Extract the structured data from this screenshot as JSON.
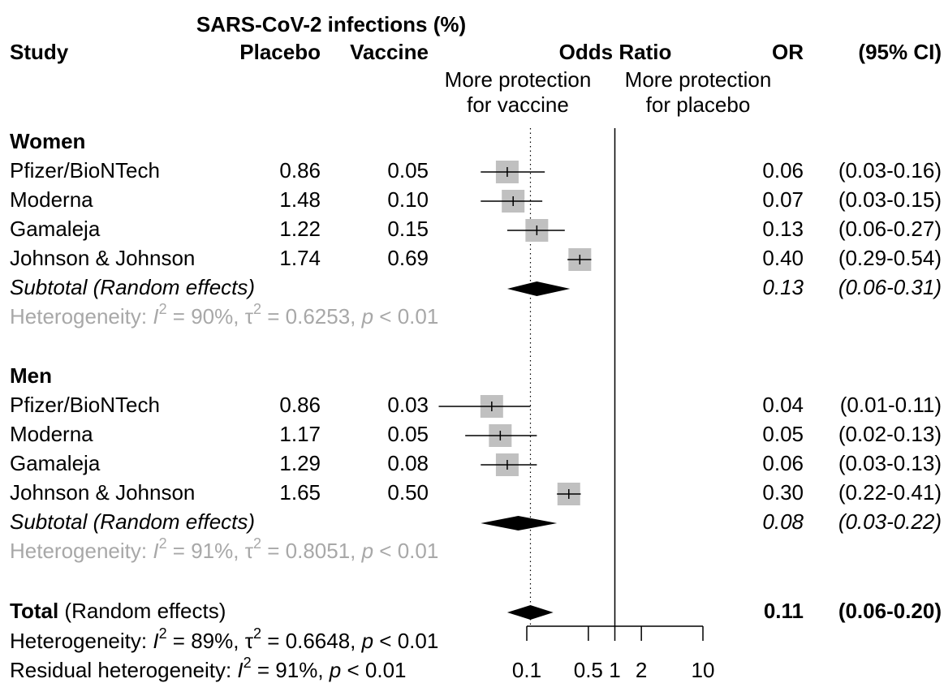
{
  "chart_data": {
    "type": "forest",
    "header": {
      "group": "SARS-CoV-2 infections (%)",
      "study": "Study",
      "placebo": "Placebo",
      "vaccine": "Vaccine",
      "plot": "Odds Ratio",
      "or": "OR",
      "ci": "(95% CI)",
      "left_note": [
        "More protection",
        "for vaccine"
      ],
      "right_note": [
        "More protection",
        "for placebo"
      ]
    },
    "xscale": "log",
    "xlim": [
      0.1,
      10
    ],
    "xticks": [
      0.1,
      0.5,
      1,
      2,
      10
    ],
    "reference": 1,
    "groups": [
      {
        "name": "Women",
        "studies": [
          {
            "name": "Pfizer/BioNTech",
            "placebo": "0.86",
            "vaccine": "0.05",
            "or": 0.06,
            "or_label": "0.06",
            "lower": 0.03,
            "upper": 0.16,
            "ci_label": "(0.03-0.16)"
          },
          {
            "name": "Moderna",
            "placebo": "1.48",
            "vaccine": "0.10",
            "or": 0.07,
            "or_label": "0.07",
            "lower": 0.03,
            "upper": 0.15,
            "ci_label": "(0.03-0.15)"
          },
          {
            "name": "Gamaleja",
            "placebo": "1.22",
            "vaccine": "0.15",
            "or": 0.13,
            "or_label": "0.13",
            "lower": 0.06,
            "upper": 0.27,
            "ci_label": "(0.06-0.27)"
          },
          {
            "name": "Johnson & Johnson",
            "placebo": "1.74",
            "vaccine": "0.69",
            "or": 0.4,
            "or_label": "0.40",
            "lower": 0.29,
            "upper": 0.54,
            "ci_label": "(0.29-0.54)"
          }
        ],
        "subtotal": {
          "name": "Subtotal (Random effects)",
          "or": 0.13,
          "or_label": "0.13",
          "lower": 0.06,
          "upper": 0.31,
          "ci_label": "(0.06-0.31)"
        },
        "heterogeneity": [
          {
            "t": "Heterogeneity: "
          },
          {
            "t": "I",
            "italic": true
          },
          {
            "t": "2",
            "sup": true
          },
          {
            "t": " = 90%, "
          },
          {
            "t": "τ"
          },
          {
            "t": "2",
            "sup": true
          },
          {
            "t": " = 0.6253, "
          },
          {
            "t": "p",
            "italic": true
          },
          {
            "t": " < 0.01"
          }
        ]
      },
      {
        "name": "Men",
        "studies": [
          {
            "name": "Pfizer/BioNTech",
            "placebo": "0.86",
            "vaccine": "0.03",
            "or": 0.04,
            "or_label": "0.04",
            "lower": 0.01,
            "upper": 0.11,
            "ci_label": "(0.01-0.11)"
          },
          {
            "name": "Moderna",
            "placebo": "1.17",
            "vaccine": "0.05",
            "or": 0.05,
            "or_label": "0.05",
            "lower": 0.02,
            "upper": 0.13,
            "ci_label": "(0.02-0.13)"
          },
          {
            "name": "Gamaleja",
            "placebo": "1.29",
            "vaccine": "0.08",
            "or": 0.06,
            "or_label": "0.06",
            "lower": 0.03,
            "upper": 0.13,
            "ci_label": "(0.03-0.13)"
          },
          {
            "name": "Johnson & Johnson",
            "placebo": "1.65",
            "vaccine": "0.50",
            "or": 0.3,
            "or_label": "0.30",
            "lower": 0.22,
            "upper": 0.41,
            "ci_label": "(0.22-0.41)"
          }
        ],
        "subtotal": {
          "name": "Subtotal (Random effects)",
          "or": 0.08,
          "or_label": "0.08",
          "lower": 0.03,
          "upper": 0.22,
          "ci_label": "(0.03-0.22)"
        },
        "heterogeneity": [
          {
            "t": "Heterogeneity: "
          },
          {
            "t": "I",
            "italic": true
          },
          {
            "t": "2",
            "sup": true
          },
          {
            "t": " = 91%, "
          },
          {
            "t": "τ"
          },
          {
            "t": "2",
            "sup": true
          },
          {
            "t": " = 0.8051, "
          },
          {
            "t": "p",
            "italic": true
          },
          {
            "t": " < 0.01"
          }
        ]
      }
    ],
    "total": {
      "name": "Total",
      "name_suffix": " (Random effects)",
      "or": 0.11,
      "or_label": "0.11",
      "lower": 0.06,
      "upper": 0.2,
      "ci_label": "(0.06-0.20)",
      "heterogeneity": [
        {
          "t": "Heterogeneity: "
        },
        {
          "t": "I",
          "italic": true
        },
        {
          "t": "2",
          "sup": true
        },
        {
          "t": " = 89%, "
        },
        {
          "t": "τ"
        },
        {
          "t": "2",
          "sup": true
        },
        {
          "t": " = 0.6648, "
        },
        {
          "t": "p",
          "italic": true
        },
        {
          "t": " < 0.01"
        }
      ],
      "residual": [
        {
          "t": "Residual heterogeneity: "
        },
        {
          "t": "I",
          "italic": true
        },
        {
          "t": "2",
          "sup": true
        },
        {
          "t": " = 91%, "
        },
        {
          "t": "p",
          "italic": true
        },
        {
          "t": " < 0.01"
        }
      ]
    }
  }
}
